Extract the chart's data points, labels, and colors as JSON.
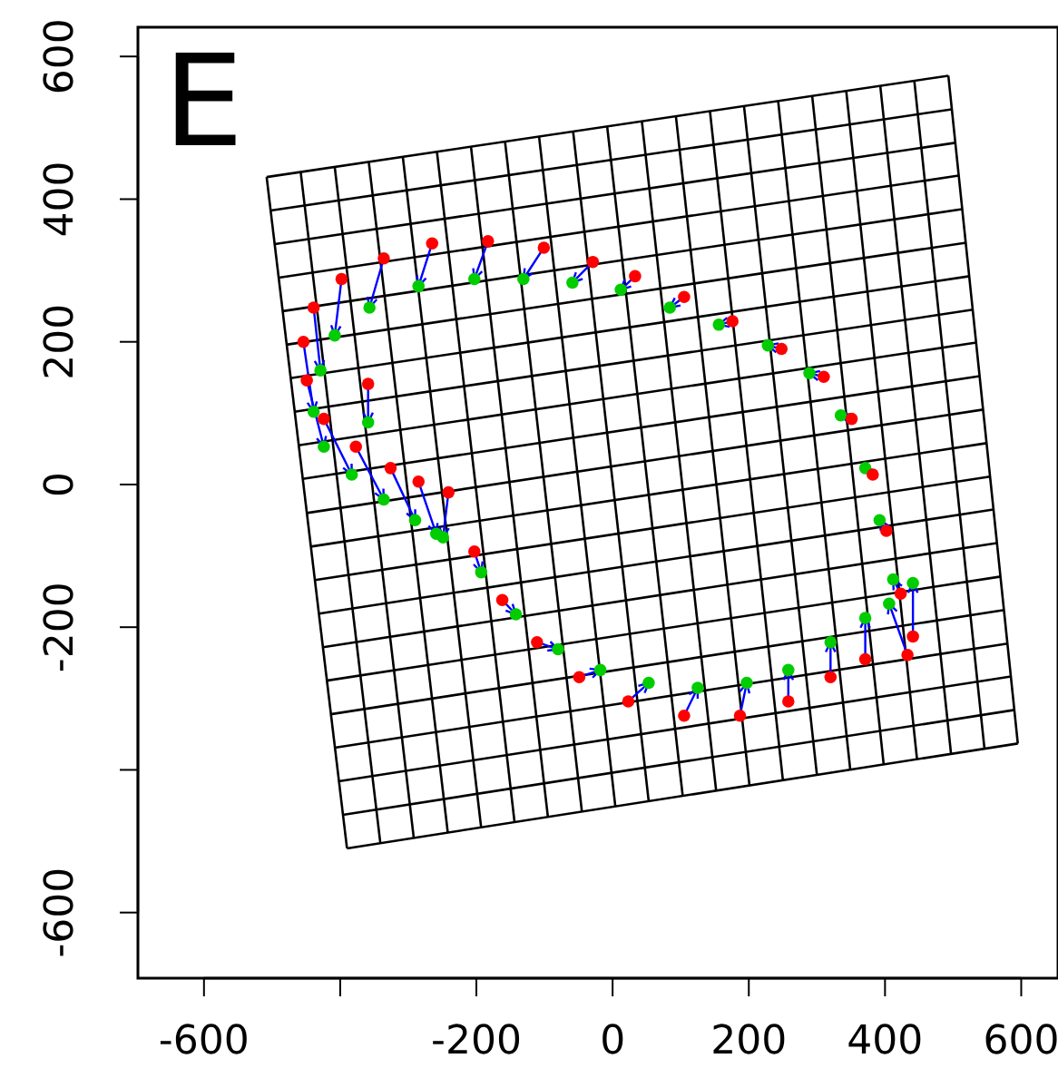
{
  "chart_data": {
    "type": "scatter",
    "title": "E",
    "xlim": [
      -697,
      654
    ],
    "ylim": [
      -692,
      641
    ],
    "xticks": [
      -600,
      {
        "value": -400,
        "label": null
      },
      -200,
      0,
      200,
      400,
      600
    ],
    "yticks": [
      -600,
      {
        "value": -400,
        "label": null
      },
      -200,
      0,
      200,
      400,
      600
    ],
    "line_style": "solid",
    "series": [
      {
        "type": "line",
        "color": "#000000",
        "x": [
          -508,
          -390
        ],
        "values": [
          431,
          -510
        ]
      },
      {
        "type": "line",
        "color": "#000000",
        "x": [
          -458,
          -341
        ],
        "values": [
          438,
          -503
        ]
      },
      {
        "type": "line",
        "color": "#000000",
        "x": [
          -408,
          -292
        ],
        "values": [
          445,
          -495
        ]
      },
      {
        "type": "line",
        "color": "#000000",
        "x": [
          -358,
          -242
        ],
        "values": [
          452,
          -488
        ]
      },
      {
        "type": "line",
        "color": "#000000",
        "x": [
          -308,
          -193
        ],
        "values": [
          459,
          -481
        ]
      },
      {
        "type": "line",
        "color": "#000000",
        "x": [
          -258,
          -144
        ],
        "values": [
          467,
          -473
        ]
      },
      {
        "type": "line",
        "color": "#000000",
        "x": [
          -208,
          -95
        ],
        "values": [
          474,
          -466
        ]
      },
      {
        "type": "line",
        "color": "#000000",
        "x": [
          -158,
          -45
        ],
        "values": [
          481,
          -459
        ]
      },
      {
        "type": "line",
        "color": "#000000",
        "x": [
          -108,
          4
        ],
        "values": [
          488,
          -451
        ]
      },
      {
        "type": "line",
        "color": "#000000",
        "x": [
          -58,
          53
        ],
        "values": [
          495,
          -444
        ]
      },
      {
        "type": "line",
        "color": "#000000",
        "x": [
          -8,
          103
        ],
        "values": [
          502,
          -437
        ]
      },
      {
        "type": "line",
        "color": "#000000",
        "x": [
          43,
          152
        ],
        "values": [
          509,
          -429
        ]
      },
      {
        "type": "line",
        "color": "#000000",
        "x": [
          93,
          201
        ],
        "values": [
          516,
          -422
        ]
      },
      {
        "type": "line",
        "color": "#000000",
        "x": [
          143,
          250
        ],
        "values": [
          523,
          -414
        ]
      },
      {
        "type": "line",
        "color": "#000000",
        "x": [
          193,
          300
        ],
        "values": [
          530,
          -407
        ]
      },
      {
        "type": "line",
        "color": "#000000",
        "x": [
          243,
          349
        ],
        "values": [
          538,
          -400
        ]
      },
      {
        "type": "line",
        "color": "#000000",
        "x": [
          293,
          398
        ],
        "values": [
          545,
          -392
        ]
      },
      {
        "type": "line",
        "color": "#000000",
        "x": [
          343,
          447
        ],
        "values": [
          552,
          -385
        ]
      },
      {
        "type": "line",
        "color": "#000000",
        "x": [
          393,
          497
        ],
        "values": [
          559,
          -378
        ]
      },
      {
        "type": "line",
        "color": "#000000",
        "x": [
          443,
          546
        ],
        "values": [
          566,
          -370
        ]
      },
      {
        "type": "line",
        "color": "#000000",
        "x": [
          493,
          595
        ],
        "values": [
          573,
          -363
        ]
      },
      {
        "type": "line",
        "color": "#000000",
        "x": [
          -502,
          498
        ],
        "values": [
          384,
          526
        ]
      },
      {
        "type": "line",
        "color": "#000000",
        "x": [
          -496,
          503
        ],
        "values": [
          337,
          479
        ]
      },
      {
        "type": "line",
        "color": "#000000",
        "x": [
          -490,
          508
        ],
        "values": [
          290,
          433
        ]
      },
      {
        "type": "line",
        "color": "#000000",
        "x": [
          -484,
          513
        ],
        "values": [
          243,
          386
        ]
      },
      {
        "type": "line",
        "color": "#000000",
        "x": [
          -479,
          519
        ],
        "values": [
          196,
          339
        ]
      },
      {
        "type": "line",
        "color": "#000000",
        "x": [
          -473,
          524
        ],
        "values": [
          149,
          292
        ]
      },
      {
        "type": "line",
        "color": "#000000",
        "x": [
          -467,
          529
        ],
        "values": [
          102,
          245
        ]
      },
      {
        "type": "line",
        "color": "#000000",
        "x": [
          -461,
          534
        ],
        "values": [
          55,
          199
        ]
      },
      {
        "type": "line",
        "color": "#000000",
        "x": [
          -455,
          539
        ],
        "values": [
          8,
          152
        ]
      },
      {
        "type": "line",
        "color": "#000000",
        "x": [
          -449,
          544
        ],
        "values": [
          -40,
          105
        ]
      },
      {
        "type": "line",
        "color": "#000000",
        "x": [
          -443,
          549
        ],
        "values": [
          -87,
          58
        ]
      },
      {
        "type": "line",
        "color": "#000000",
        "x": [
          -437,
          554
        ],
        "values": [
          -134,
          11
        ]
      },
      {
        "type": "line",
        "color": "#000000",
        "x": [
          -431,
          559
        ],
        "values": [
          -181,
          -35
        ]
      },
      {
        "type": "line",
        "color": "#000000",
        "x": [
          -425,
          564
        ],
        "values": [
          -228,
          -82
        ]
      },
      {
        "type": "line",
        "color": "#000000",
        "x": [
          -420,
          570
        ],
        "values": [
          -275,
          -129
        ]
      },
      {
        "type": "line",
        "color": "#000000",
        "x": [
          -414,
          575
        ],
        "values": [
          -322,
          -176
        ]
      },
      {
        "type": "line",
        "color": "#000000",
        "x": [
          -408,
          580
        ],
        "values": [
          -369,
          -223
        ]
      },
      {
        "type": "line",
        "color": "#000000",
        "x": [
          -402,
          585
        ],
        "values": [
          -416,
          -269
        ]
      },
      {
        "type": "line",
        "color": "#000000",
        "x": [
          -396,
          590
        ],
        "values": [
          -463,
          -316
        ]
      },
      {
        "type": "line",
        "color": "#000000",
        "x": [
          -508,
          493
        ],
        "values": [
          431,
          573
        ]
      },
      {
        "type": "line",
        "color": "#000000",
        "x": [
          -390,
          595
        ],
        "values": [
          -510,
          -363
        ]
      },
      {
        "color": "#00cc00",
        "marker": "circle",
        "x": [
          -359,
          -249,
          -193,
          -142,
          -80,
          -18,
          53,
          125,
          197,
          258,
          320,
          371,
          406,
          441,
          412,
          392,
          371,
          335,
          289,
          228,
          156,
          84,
          12,
          -59,
          -131,
          -203,
          -285,
          -357,
          -408,
          -429,
          -439,
          -424,
          -383,
          -336,
          -290,
          -259
        ],
        "values": [
          87,
          -74,
          -123,
          -182,
          -231,
          -260,
          -278,
          -285,
          -278,
          -260,
          -221,
          -187,
          -167,
          -138,
          -133,
          -50,
          23,
          97,
          156,
          195,
          224,
          248,
          273,
          283,
          288,
          288,
          278,
          248,
          209,
          160,
          102,
          53,
          14,
          -21,
          -50,
          -69
        ]
      },
      {
        "color": "#ff0000",
        "marker": "circle",
        "x": [
          -359,
          -241,
          -203,
          -162,
          -111,
          -49,
          23,
          105,
          187,
          258,
          320,
          371,
          433,
          441,
          423,
          402,
          382,
          351,
          310,
          248,
          176,
          105,
          33,
          -29,
          -101,
          -183,
          -265,
          -336,
          -398,
          -439,
          -454,
          -449,
          -424,
          -377,
          -326,
          -285
        ],
        "values": [
          141,
          -11,
          -94,
          -162,
          -221,
          -270,
          -304,
          -324,
          -324,
          -304,
          -270,
          -245,
          -239,
          -213,
          -153,
          -65,
          14,
          92,
          151,
          190,
          229,
          263,
          292,
          312,
          332,
          341,
          338,
          317,
          288,
          248,
          200,
          146,
          92,
          53,
          23,
          4
        ]
      }
    ]
  }
}
